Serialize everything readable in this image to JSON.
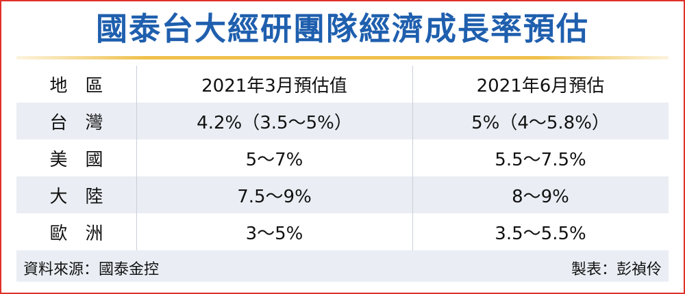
{
  "header": {
    "title": "國泰台大經研團隊經濟成長率預估"
  },
  "table": {
    "columns": [
      "地區",
      "2021年3月預估值",
      "2021年6月預估"
    ],
    "rows": [
      [
        "台灣",
        "4.2%（3.5～5%）",
        "5%（4～5.8%）"
      ],
      [
        "美國",
        "5～7%",
        "5.5～7.5%"
      ],
      [
        "大陸",
        "7.5～9%",
        "8～9%"
      ],
      [
        "歐洲",
        "3～5%",
        "3.5～5.5%"
      ]
    ]
  },
  "footer": {
    "source": "資料來源：國泰金控",
    "author": "製表：彭禎伶"
  }
}
